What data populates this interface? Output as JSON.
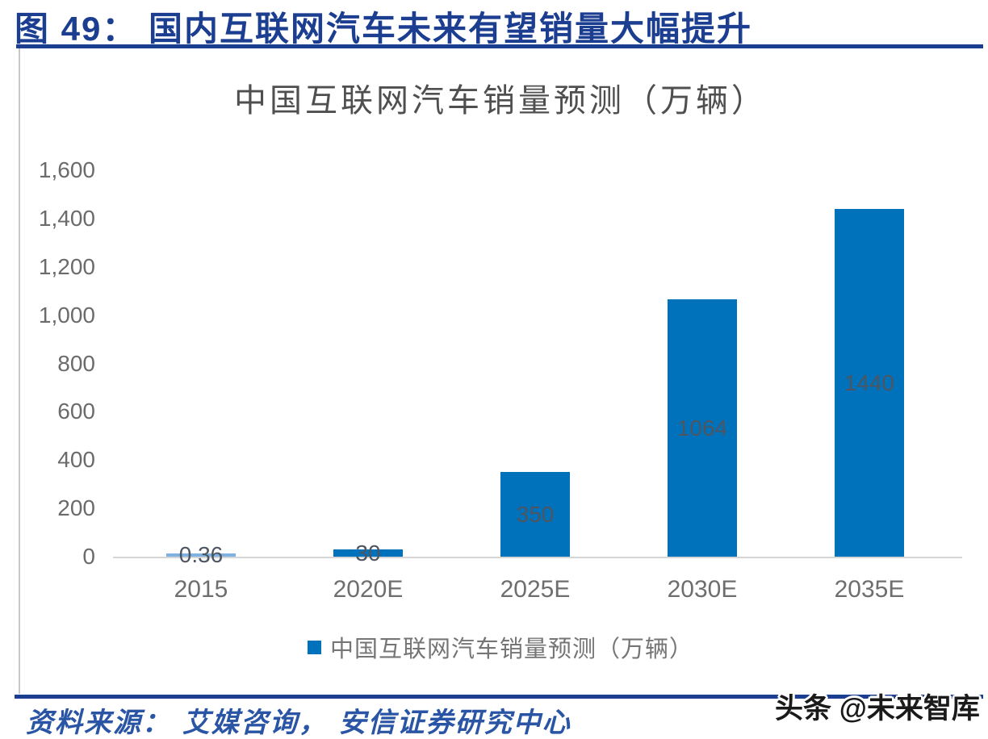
{
  "header": {
    "title": "图 49：  国内互联网汽车未来有望销量大幅提升"
  },
  "chart": {
    "title": "中国互联网汽车销量预测（万辆）",
    "legend_label": "中国互联网汽车销量预测（万辆）"
  },
  "chart_data": {
    "type": "bar",
    "title": "中国互联网汽车销量预测（万辆）",
    "categories": [
      "2015",
      "2020E",
      "2025E",
      "2030E",
      "2035E"
    ],
    "values": [
      0.36,
      30,
      350,
      1064,
      1440
    ],
    "value_labels": [
      "0.36",
      "30",
      "350",
      "1064",
      "1440"
    ],
    "ylim": [
      0,
      1600
    ],
    "y_ticks": [
      0,
      200,
      400,
      600,
      800,
      1000,
      1200,
      1400,
      1600
    ],
    "y_tick_labels": [
      "0",
      "200",
      "400",
      "600",
      "800",
      "1,000",
      "1,200",
      "1,400",
      "1,600"
    ],
    "xlabel": "",
    "ylabel": "",
    "grid": false,
    "legend_entries": [
      "中国互联网汽车销量预测（万辆）"
    ],
    "legend_position": "bottom",
    "bar_color": "#0072bc",
    "tiny_bar_color": "#7fb2e0",
    "label_color": "#4d5660"
  },
  "footer": {
    "source": "资料来源：  艾媒咨询，  安信证券研究中心",
    "watermark": "头条 @未来智库"
  },
  "colors": {
    "accent_navy": "#1c3e91",
    "bar_blue": "#0072bc",
    "tiny_bar_blue": "#7fb2e0",
    "axis_gray": "#d6d6d6",
    "text_gray": "#6b6b6b"
  }
}
